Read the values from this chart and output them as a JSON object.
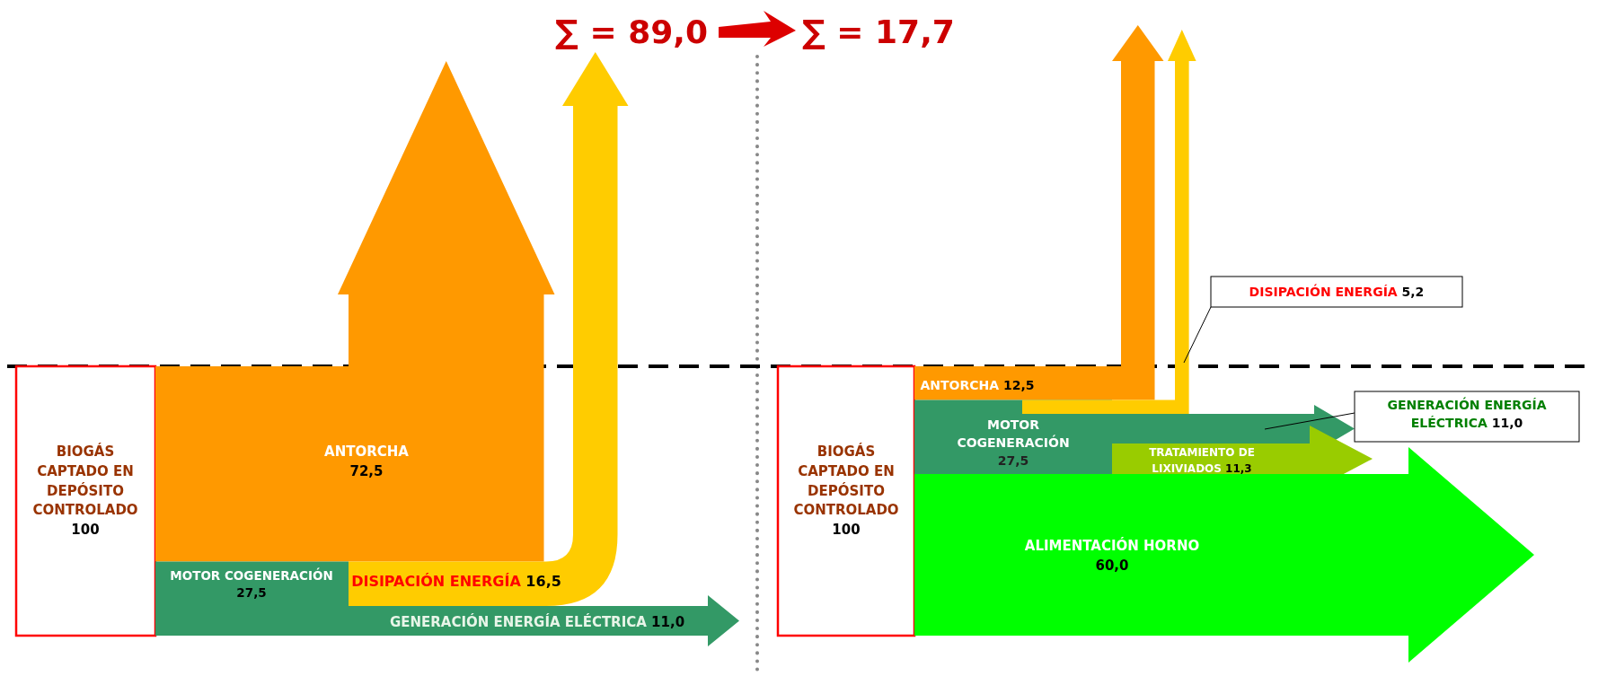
{
  "chart_data": [
    {
      "type": "other",
      "categories": [
        "BIOGÁS CAPTADO EN DEPÓSITO CONTROLADO",
        "ANTORCHA",
        "MOTOR COGENERACIÓN",
        "DISIPACIÓN ENERGÍA",
        "GENERACIÓN  ENERGÍA ELÉCTRICA"
      ],
      "values": [
        100,
        72.5,
        27.5,
        16.5,
        11.0
      ],
      "value_labels": [
        "100",
        "72,5",
        "27,5",
        "16,5",
        "11,0"
      ],
      "colors": [
        "#ff0000",
        "#ff9900",
        "#339966",
        "#ffcc00",
        "#339966"
      ],
      "annotations": [
        "∑ = 89,0"
      ]
    },
    {
      "type": "other",
      "categories": [
        "BIOGÁS CAPTADO EN DEPÓSITO CONTROLADO",
        "ANTORCHA",
        "MOTOR COGENERACIÓN",
        "DISIPACIÓN ENERGÍA",
        "GENERACIÓN  ENERGÍA ELÉCTRICA",
        "TRATAMIENTO DE LIXIVIADOS",
        "ALIMENTACIÓN HORNO"
      ],
      "values": [
        100,
        12.5,
        27.5,
        5.2,
        11.0,
        11.3,
        60.0
      ],
      "value_labels": [
        "100",
        "12,5",
        "27,5",
        "5,2",
        "11,0",
        "11,3",
        "60,0"
      ],
      "colors": [
        "#ff0000",
        "#ff9900",
        "#339966",
        "#ffcc00",
        "#339966",
        "#99cc00",
        "#00ff00"
      ],
      "annotations": [
        "∑ = 17,7"
      ]
    }
  ]
}
